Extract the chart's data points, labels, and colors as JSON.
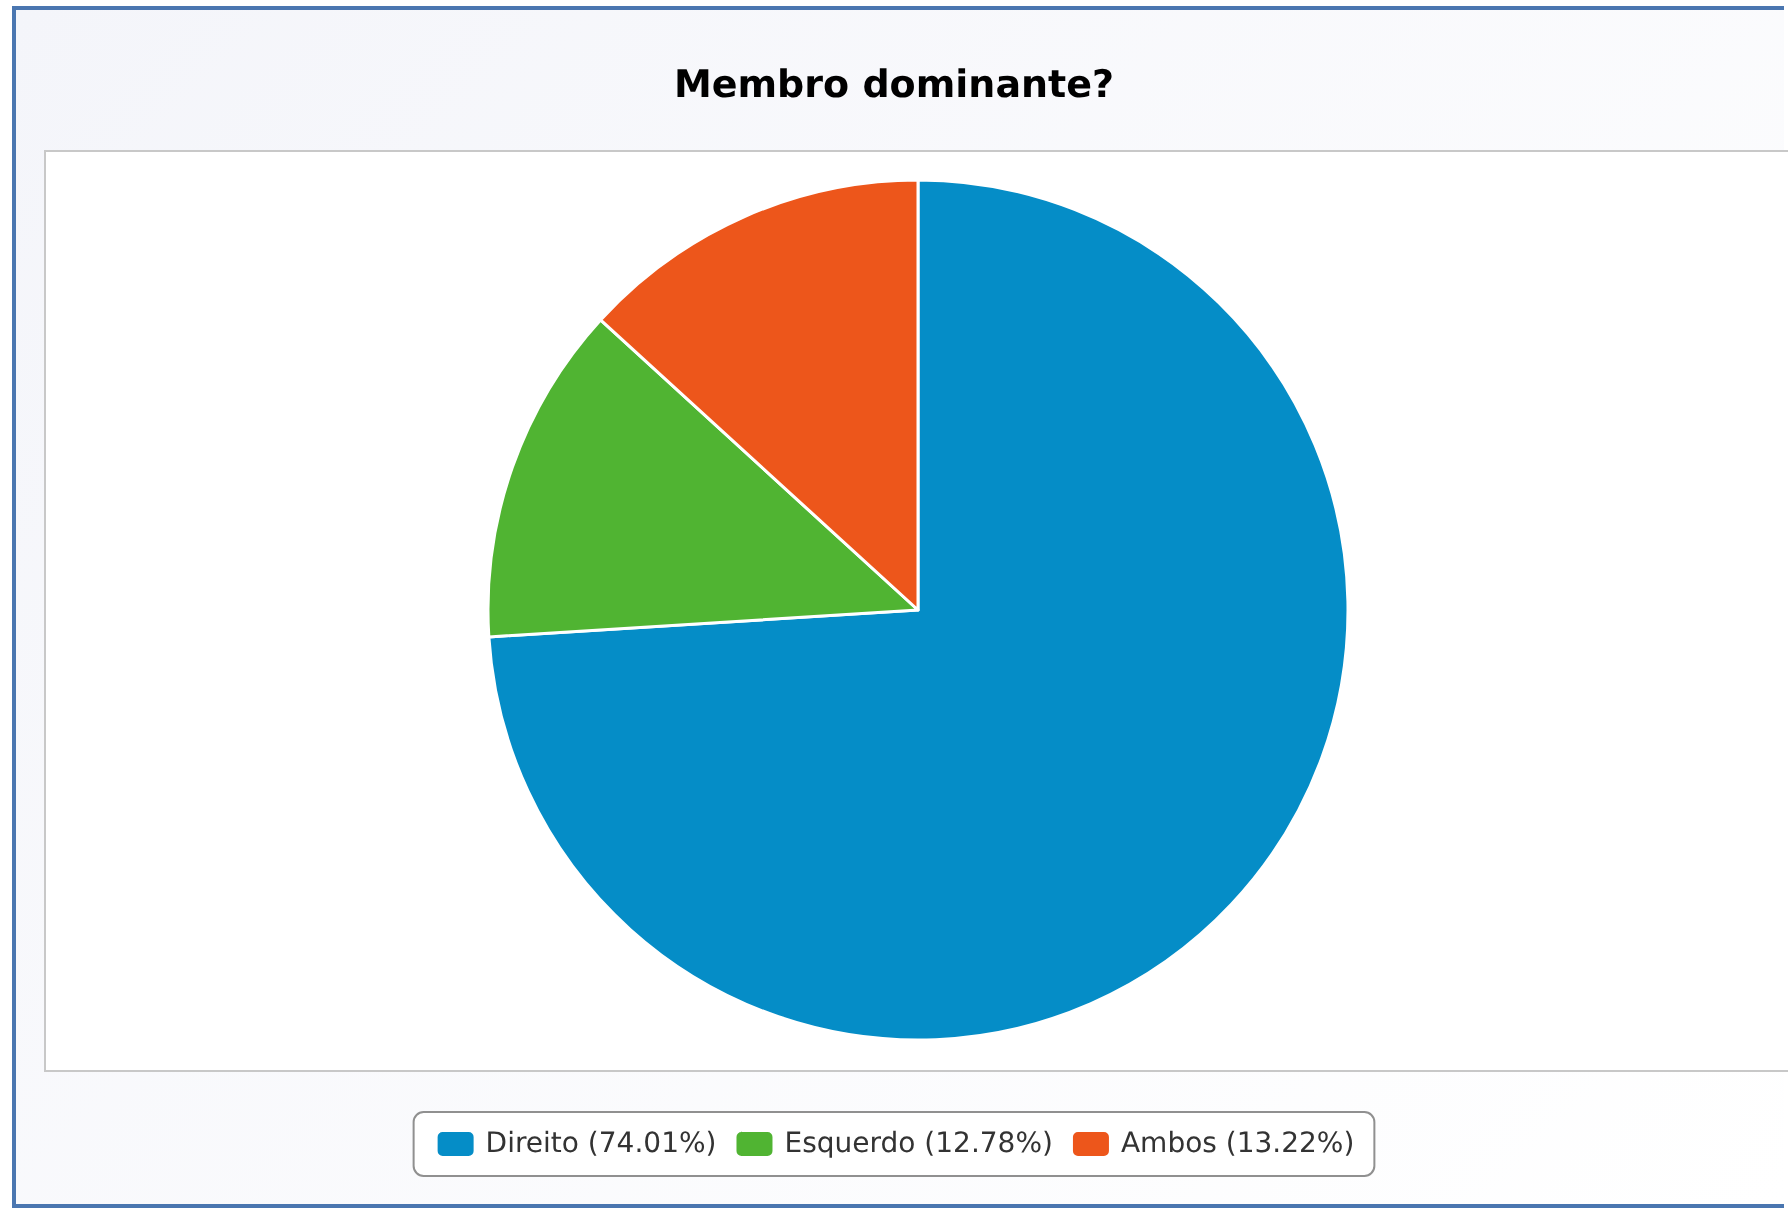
{
  "chart_data": {
    "type": "pie",
    "title": "Membro dominante?",
    "categories": [
      "Direito (74.01%)",
      "Esquerdo (12.78%)",
      "Ambos (13.22%)"
    ],
    "values": [
      74.01,
      12.78,
      13.22
    ],
    "colors": [
      "#058dc7",
      "#50b432",
      "#ed561b"
    ],
    "legend": "bottom"
  }
}
